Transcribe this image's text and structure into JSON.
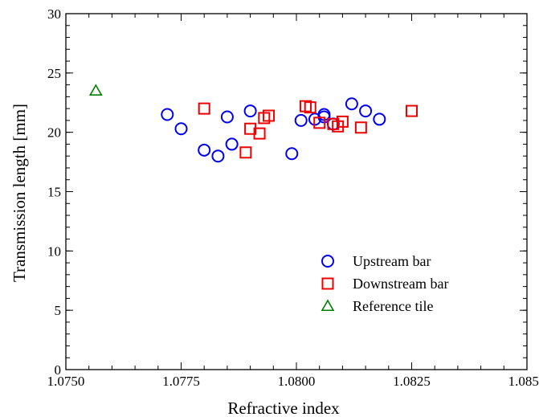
{
  "chart_data": {
    "type": "scatter",
    "xlabel": "Refractive index",
    "ylabel": "Transmission length [mm]",
    "xlim": [
      1.075,
      1.085
    ],
    "ylim": [
      0,
      30
    ],
    "xticks": [
      "1.0750",
      "1.0775",
      "1.0800",
      "1.0825",
      "1.0850"
    ],
    "xtick_values": [
      1.075,
      1.0775,
      1.08,
      1.0825,
      1.085
    ],
    "yticks": [
      "0",
      "5",
      "10",
      "15",
      "20",
      "25",
      "30"
    ],
    "ytick_values": [
      0,
      5,
      10,
      15,
      20,
      25,
      30
    ],
    "grid": false,
    "legend_position": "bottom-right",
    "series": [
      {
        "name": "Upstream bar",
        "marker": "circle",
        "color": "#0000ee",
        "points": [
          [
            1.0772,
            21.5
          ],
          [
            1.0775,
            20.3
          ],
          [
            1.078,
            18.5
          ],
          [
            1.0783,
            18.0
          ],
          [
            1.0785,
            21.3
          ],
          [
            1.0786,
            19.0
          ],
          [
            1.079,
            21.8
          ],
          [
            1.0799,
            18.2
          ],
          [
            1.0801,
            21.0
          ],
          [
            1.0804,
            21.1
          ],
          [
            1.0806,
            21.5
          ],
          [
            1.0806,
            21.3
          ],
          [
            1.0808,
            20.7
          ],
          [
            1.0812,
            22.4
          ],
          [
            1.0815,
            21.8
          ],
          [
            1.0818,
            21.1
          ]
        ]
      },
      {
        "name": "Downstream bar",
        "marker": "square",
        "color": "#ee0000",
        "points": [
          [
            1.078,
            22.0
          ],
          [
            1.0789,
            18.3
          ],
          [
            1.079,
            20.3
          ],
          [
            1.0792,
            19.9
          ],
          [
            1.0793,
            21.2
          ],
          [
            1.0794,
            21.4
          ],
          [
            1.0802,
            22.2
          ],
          [
            1.0803,
            22.1
          ],
          [
            1.0805,
            20.8
          ],
          [
            1.0808,
            20.7
          ],
          [
            1.0809,
            20.5
          ],
          [
            1.081,
            20.9
          ],
          [
            1.0814,
            20.4
          ],
          [
            1.0825,
            21.8
          ]
        ]
      },
      {
        "name": "Reference tile",
        "marker": "triangle",
        "color": "#008000",
        "points": [
          [
            1.07565,
            23.5
          ]
        ]
      }
    ]
  }
}
